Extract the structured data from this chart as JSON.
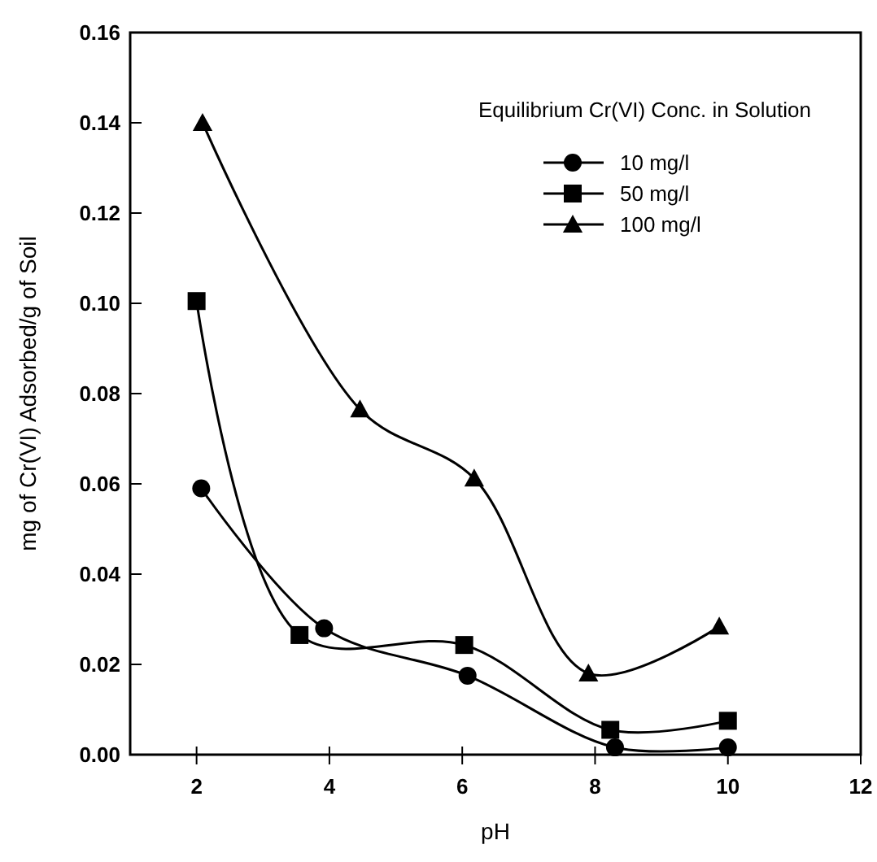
{
  "chart_data": {
    "type": "line",
    "xlabel": "pH",
    "ylabel": "mg of Cr(VI) Adsorbed/g of Soil",
    "legend_title": "Equilibrium Cr(VI) Conc. in Solution",
    "legend": "top right",
    "grid": false,
    "line_style": "solid",
    "xlim": [
      1,
      12
    ],
    "xticks": [
      2,
      4,
      6,
      8,
      10,
      12
    ],
    "ylim": [
      0,
      0.16
    ],
    "yticks": [
      {
        "value": 0,
        "label": "0.00"
      },
      {
        "value": 0.02,
        "label": "0.02"
      },
      {
        "value": 0.04,
        "label": "0.04"
      },
      {
        "value": 0.06,
        "label": "0.06"
      },
      {
        "value": 0.08,
        "label": "0.08"
      },
      {
        "value": 0.1,
        "label": "0.10"
      },
      {
        "value": 0.12,
        "label": "0.12"
      },
      {
        "value": 0.14,
        "label": "0.14"
      },
      {
        "value": 0.16,
        "label": "0.16"
      }
    ],
    "series": [
      {
        "name": "10 mg/l",
        "color": "#000000",
        "marker": "circle",
        "x": [
          2.07,
          3.92,
          6.08,
          8.3,
          10
        ],
        "values": [
          0.059,
          0.028,
          0.0175,
          0.0016,
          0.0016
        ]
      },
      {
        "name": "50 mg/l",
        "color": "#000000",
        "marker": "square",
        "x": [
          2.0,
          3.55,
          6.03,
          8.23,
          10
        ],
        "values": [
          0.1005,
          0.0265,
          0.0243,
          0.0055,
          0.0075
        ]
      },
      {
        "name": "100 mg/l",
        "color": "#000000",
        "marker": "triangle",
        "x": [
          2.09,
          4.46,
          6.18,
          7.9,
          9.87
        ],
        "values": [
          0.14,
          0.0765,
          0.0612,
          0.018,
          0.0284
        ]
      }
    ]
  }
}
